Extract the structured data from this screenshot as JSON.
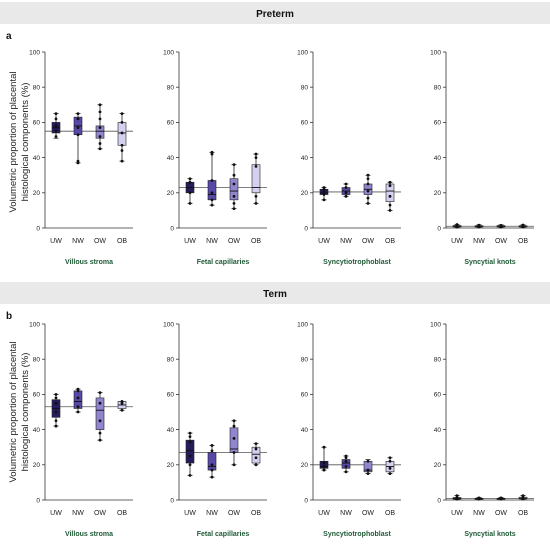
{
  "bands": [
    {
      "title": "Preterm",
      "letter": "a"
    },
    {
      "title": "Term",
      "letter": "b"
    }
  ],
  "colors": {
    "UW": "#241c5c",
    "NW": "#5649a8",
    "OW": "#8f86cf",
    "OB": "#d4d1f0",
    "component_label": "#1f5a36"
  },
  "chart_data": {
    "type": "box",
    "ylabel": "Volumetric proportion of placental histological components (%)",
    "ylim": [
      0,
      100
    ],
    "yticks": [
      0,
      20,
      40,
      60,
      80,
      100
    ],
    "categories": [
      "UW",
      "NW",
      "OW",
      "OB"
    ],
    "rows": [
      {
        "title": "Preterm",
        "letter": "a",
        "panels": [
          {
            "component": "Villous stroma",
            "reference": 55,
            "boxes": [
              {
                "group": "UW",
                "min": 51,
                "q1": 54,
                "median": 57,
                "q3": 60,
                "max": 65,
                "points": [
                  52,
                  55,
                  58,
                  62,
                  65
                ]
              },
              {
                "group": "NW",
                "min": 37,
                "q1": 53,
                "median": 58,
                "q3": 63,
                "max": 65,
                "points": [
                  37,
                  38,
                  53,
                  57,
                  62,
                  65
                ]
              },
              {
                "group": "OW",
                "min": 45,
                "q1": 51,
                "median": 55,
                "q3": 58,
                "max": 70,
                "points": [
                  45,
                  48,
                  52,
                  57,
                  62,
                  66,
                  70
                ]
              },
              {
                "group": "OB",
                "min": 38,
                "q1": 47,
                "median": 54,
                "q3": 60,
                "max": 65,
                "points": [
                  38,
                  44,
                  47,
                  54,
                  60,
                  65
                ]
              }
            ]
          },
          {
            "component": "Fetal capillaries",
            "reference": 23,
            "boxes": [
              {
                "group": "UW",
                "min": 14,
                "q1": 20,
                "median": 23,
                "q3": 26,
                "max": 28,
                "points": [
                  14,
                  20,
                  26,
                  28
                ]
              },
              {
                "group": "NW",
                "min": 13,
                "q1": 16,
                "median": 19,
                "q3": 27,
                "max": 43,
                "points": [
                  13,
                  16,
                  20,
                  27,
                  42,
                  43
                ]
              },
              {
                "group": "OW",
                "min": 11,
                "q1": 16,
                "median": 21,
                "q3": 28,
                "max": 36,
                "points": [
                  11,
                  14,
                  18,
                  25,
                  30,
                  36
                ]
              },
              {
                "group": "OB",
                "min": 14,
                "q1": 20,
                "median": 23,
                "q3": 36,
                "max": 42,
                "points": [
                  14,
                  18,
                  35,
                  40,
                  42
                ]
              }
            ]
          },
          {
            "component": "Syncytiotrophoblast",
            "reference": 20.5,
            "boxes": [
              {
                "group": "UW",
                "min": 16,
                "q1": 19,
                "median": 20,
                "q3": 22,
                "max": 23,
                "points": [
                  16,
                  19,
                  21,
                  22,
                  23
                ]
              },
              {
                "group": "NW",
                "min": 18,
                "q1": 19,
                "median": 21,
                "q3": 23,
                "max": 25,
                "points": [
                  18,
                  20,
                  23,
                  25
                ]
              },
              {
                "group": "OW",
                "min": 14,
                "q1": 19,
                "median": 22,
                "q3": 25,
                "max": 30,
                "points": [
                  14,
                  17,
                  21,
                  25,
                  28,
                  30
                ]
              },
              {
                "group": "OB",
                "min": 10,
                "q1": 15,
                "median": 21,
                "q3": 25,
                "max": 26,
                "points": [
                  10,
                  13,
                  18,
                  24,
                  26
                ]
              }
            ]
          },
          {
            "component": "Syncytial knots",
            "reference": 1,
            "boxes": [
              {
                "group": "UW",
                "min": 0.3,
                "q1": 0.6,
                "median": 1,
                "q3": 1.4,
                "max": 2,
                "points": [
                  0.5,
                  1.5,
                  2
                ]
              },
              {
                "group": "NW",
                "min": 0.3,
                "q1": 0.6,
                "median": 1,
                "q3": 1.3,
                "max": 1.8,
                "points": [
                  0.6,
                  1.6
                ]
              },
              {
                "group": "OW",
                "min": 0.3,
                "q1": 0.6,
                "median": 1,
                "q3": 1.4,
                "max": 1.8,
                "points": [
                  0.5,
                  1.5
                ]
              },
              {
                "group": "OB",
                "min": 0.3,
                "q1": 0.6,
                "median": 1,
                "q3": 1.3,
                "max": 1.8,
                "points": [
                  0.6,
                  1.7
                ]
              }
            ]
          }
        ]
      },
      {
        "title": "Term",
        "letter": "b",
        "panels": [
          {
            "component": "Villous stroma",
            "reference": 53,
            "boxes": [
              {
                "group": "UW",
                "min": 42,
                "q1": 47,
                "median": 52,
                "q3": 57,
                "max": 60,
                "points": [
                  42,
                  45,
                  50,
                  55,
                  58,
                  60
                ]
              },
              {
                "group": "NW",
                "min": 50,
                "q1": 52,
                "median": 56,
                "q3": 62,
                "max": 63,
                "points": [
                  50,
                  53,
                  58,
                  62,
                  63
                ]
              },
              {
                "group": "OW",
                "min": 34,
                "q1": 40,
                "median": 51,
                "q3": 58,
                "max": 61,
                "points": [
                  34,
                  38,
                  45,
                  55,
                  61
                ]
              },
              {
                "group": "OB",
                "min": 51,
                "q1": 52,
                "median": 54,
                "q3": 56,
                "max": 56,
                "points": [
                  51,
                  55,
                  56
                ]
              }
            ]
          },
          {
            "component": "Fetal capillaries",
            "reference": 27,
            "boxes": [
              {
                "group": "UW",
                "min": 14,
                "q1": 21,
                "median": 28,
                "q3": 34,
                "max": 38,
                "points": [
                  14,
                  20,
                  25,
                  33,
                  36,
                  38
                ]
              },
              {
                "group": "NW",
                "min": 13,
                "q1": 17,
                "median": 19,
                "q3": 27,
                "max": 31,
                "points": [
                  13,
                  17,
                  20,
                  28,
                  31
                ]
              },
              {
                "group": "OW",
                "min": 20,
                "q1": 27,
                "median": 29,
                "q3": 41,
                "max": 45,
                "points": [
                  20,
                  27,
                  35,
                  42,
                  45
                ]
              },
              {
                "group": "OB",
                "min": 20,
                "q1": 21,
                "median": 26,
                "q3": 30,
                "max": 32,
                "points": [
                  20,
                  24,
                  29,
                  32
                ]
              }
            ]
          },
          {
            "component": "Syncytiotrophoblast",
            "reference": 20,
            "boxes": [
              {
                "group": "UW",
                "min": 17,
                "q1": 18,
                "median": 19,
                "q3": 22,
                "max": 30,
                "points": [
                  17,
                  19,
                  21,
                  30
                ]
              },
              {
                "group": "NW",
                "min": 16,
                "q1": 18,
                "median": 21,
                "q3": 23,
                "max": 25,
                "points": [
                  16,
                  19,
                  22,
                  24,
                  25
                ]
              },
              {
                "group": "OW",
                "min": 15,
                "q1": 16,
                "median": 17,
                "q3": 22,
                "max": 23,
                "points": [
                  15,
                  17,
                  22
                ]
              },
              {
                "group": "OB",
                "min": 15,
                "q1": 16,
                "median": 19,
                "q3": 22,
                "max": 24,
                "points": [
                  15,
                  18,
                  22,
                  24
                ]
              }
            ]
          },
          {
            "component": "Syncytial knots",
            "reference": 0.8,
            "boxes": [
              {
                "group": "UW",
                "min": 0.2,
                "q1": 0.5,
                "median": 1,
                "q3": 1.4,
                "max": 2.5,
                "points": [
                  0.5,
                  1.5,
                  2.5
                ]
              },
              {
                "group": "NW",
                "min": 0.2,
                "q1": 0.4,
                "median": 0.7,
                "q3": 1,
                "max": 1.5,
                "points": [
                  0.5,
                  1.2
                ]
              },
              {
                "group": "OW",
                "min": 0.2,
                "q1": 0.4,
                "median": 0.7,
                "q3": 1,
                "max": 1.5,
                "points": [
                  0.5,
                  1.2
                ]
              },
              {
                "group": "OB",
                "min": 0.3,
                "q1": 0.6,
                "median": 1,
                "q3": 1.6,
                "max": 2.5,
                "points": [
                  0.6,
                  1.8,
                  2.5
                ]
              }
            ]
          }
        ]
      }
    ]
  }
}
